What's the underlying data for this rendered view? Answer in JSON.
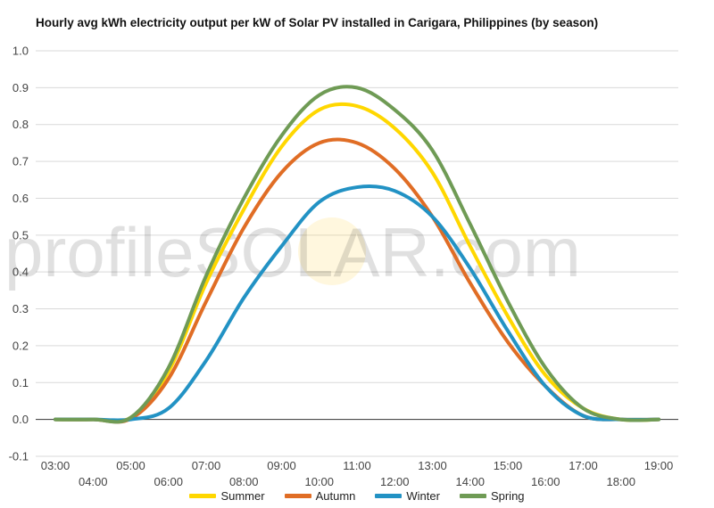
{
  "chart_data": {
    "type": "line",
    "title": "Hourly avg kWh electricity output per kW of Solar PV installed in Carigara, Philippines (by season)",
    "xlabel": "",
    "ylabel": "",
    "ylim": [
      -0.1,
      1.0
    ],
    "yticks": [
      "-0.1",
      "0.0",
      "0.1",
      "0.2",
      "0.3",
      "0.4",
      "0.5",
      "0.6",
      "0.7",
      "0.8",
      "0.9",
      "1.0"
    ],
    "x": [
      "03:00",
      "04:00",
      "05:00",
      "06:00",
      "07:00",
      "08:00",
      "09:00",
      "10:00",
      "11:00",
      "12:00",
      "13:00",
      "14:00",
      "15:00",
      "16:00",
      "17:00",
      "18:00",
      "19:00"
    ],
    "grid": true,
    "legend": "bottom",
    "watermark": "profileSOLAR.com",
    "series": [
      {
        "name": "Summer",
        "color": "#ffd700",
        "values": [
          0.0,
          0.0,
          0.005,
          0.13,
          0.37,
          0.57,
          0.74,
          0.84,
          0.85,
          0.79,
          0.67,
          0.47,
          0.28,
          0.12,
          0.03,
          0.0,
          0.0
        ]
      },
      {
        "name": "Autumn",
        "color": "#e06d25",
        "values": [
          0.0,
          0.0,
          0.002,
          0.11,
          0.32,
          0.52,
          0.67,
          0.75,
          0.75,
          0.68,
          0.55,
          0.37,
          0.21,
          0.09,
          0.01,
          0.0,
          0.0
        ]
      },
      {
        "name": "Winter",
        "color": "#2292c4",
        "values": [
          0.0,
          0.0,
          0.0,
          0.03,
          0.16,
          0.33,
          0.47,
          0.59,
          0.63,
          0.62,
          0.55,
          0.41,
          0.24,
          0.09,
          0.01,
          0.0,
          0.0
        ]
      },
      {
        "name": "Spring",
        "color": "#6f9b55",
        "values": [
          0.0,
          0.0,
          0.005,
          0.14,
          0.39,
          0.6,
          0.77,
          0.88,
          0.9,
          0.84,
          0.73,
          0.53,
          0.32,
          0.14,
          0.03,
          0.0,
          0.0
        ]
      }
    ]
  }
}
